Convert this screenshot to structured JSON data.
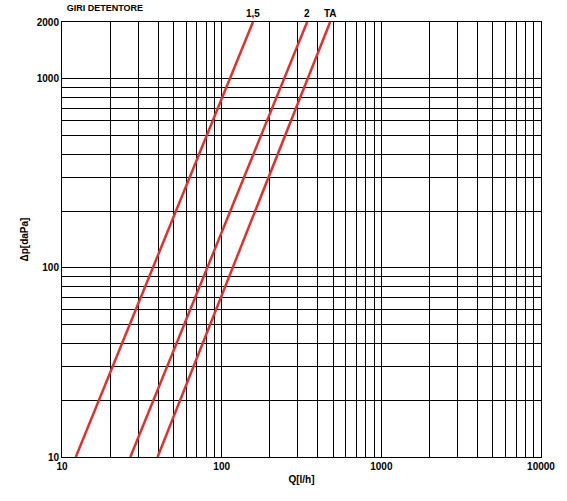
{
  "chart_data": {
    "type": "line",
    "title": "GIRI DETENTORE",
    "x_label": "Q[l/h]",
    "y_label": "Δp[daPa]",
    "log": true,
    "grid": true,
    "xlim": [
      10,
      10000
    ],
    "ylim": [
      10,
      2000
    ],
    "xticks": [
      10,
      100,
      1000,
      10000
    ],
    "yticks": [
      10,
      100,
      1000,
      2000
    ],
    "series": [
      {
        "name": "1,5",
        "color": "#e0312f",
        "x": [
          12.2,
          157
        ],
        "values": [
          10,
          2000
        ]
      },
      {
        "name": "2",
        "color": "#e0312f",
        "x": [
          26.8,
          343
        ],
        "values": [
          10,
          2000
        ]
      },
      {
        "name": "TA",
        "color": "#e0312f",
        "x": [
          39.7,
          478
        ],
        "values": [
          10,
          2000
        ]
      }
    ]
  }
}
